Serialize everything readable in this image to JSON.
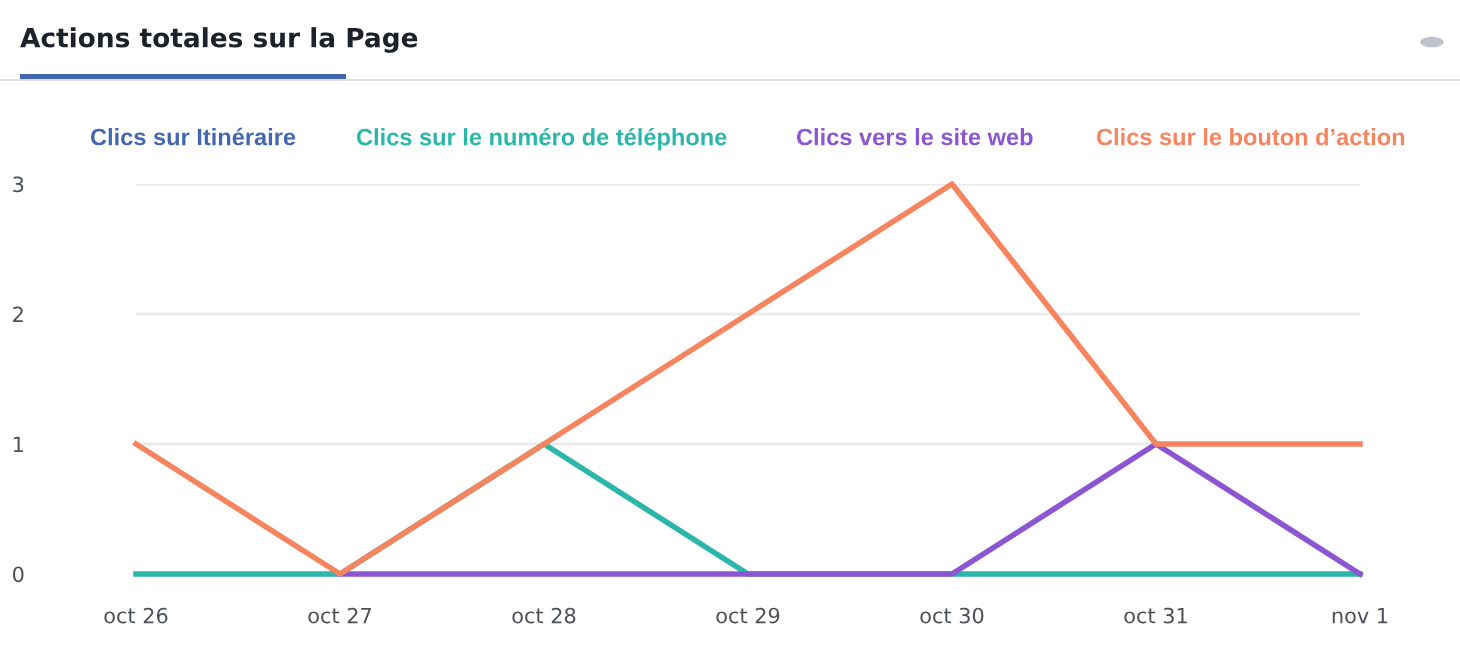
{
  "chart_data": {
    "type": "line",
    "title": "Actions totales sur la Page",
    "categories": [
      "oct 26",
      "oct 27",
      "oct 28",
      "oct 29",
      "oct 30",
      "oct 31",
      "nov 1"
    ],
    "series": [
      {
        "name": "Clics sur Itinéraire",
        "color": "#4267b2",
        "values": [
          null,
          null,
          null,
          null,
          null,
          null,
          null
        ]
      },
      {
        "name": "Clics sur le numéro de téléphone",
        "color": "#2ab7a9",
        "values": [
          0,
          0,
          1,
          0,
          0,
          0,
          0
        ]
      },
      {
        "name": "Clics vers le site web",
        "color": "#8c55d1",
        "values": [
          null,
          0,
          0,
          0,
          0,
          1,
          0
        ]
      },
      {
        "name": "Clics sur le bouton d’action",
        "color": "#f6845e",
        "values": [
          1,
          0,
          1,
          2,
          3,
          1,
          1
        ]
      }
    ],
    "ylim": [
      0,
      3
    ],
    "yticks": [
      0,
      1,
      2,
      3
    ],
    "grid": "y",
    "legend": "top",
    "marker": "none",
    "line_style": "solid"
  }
}
